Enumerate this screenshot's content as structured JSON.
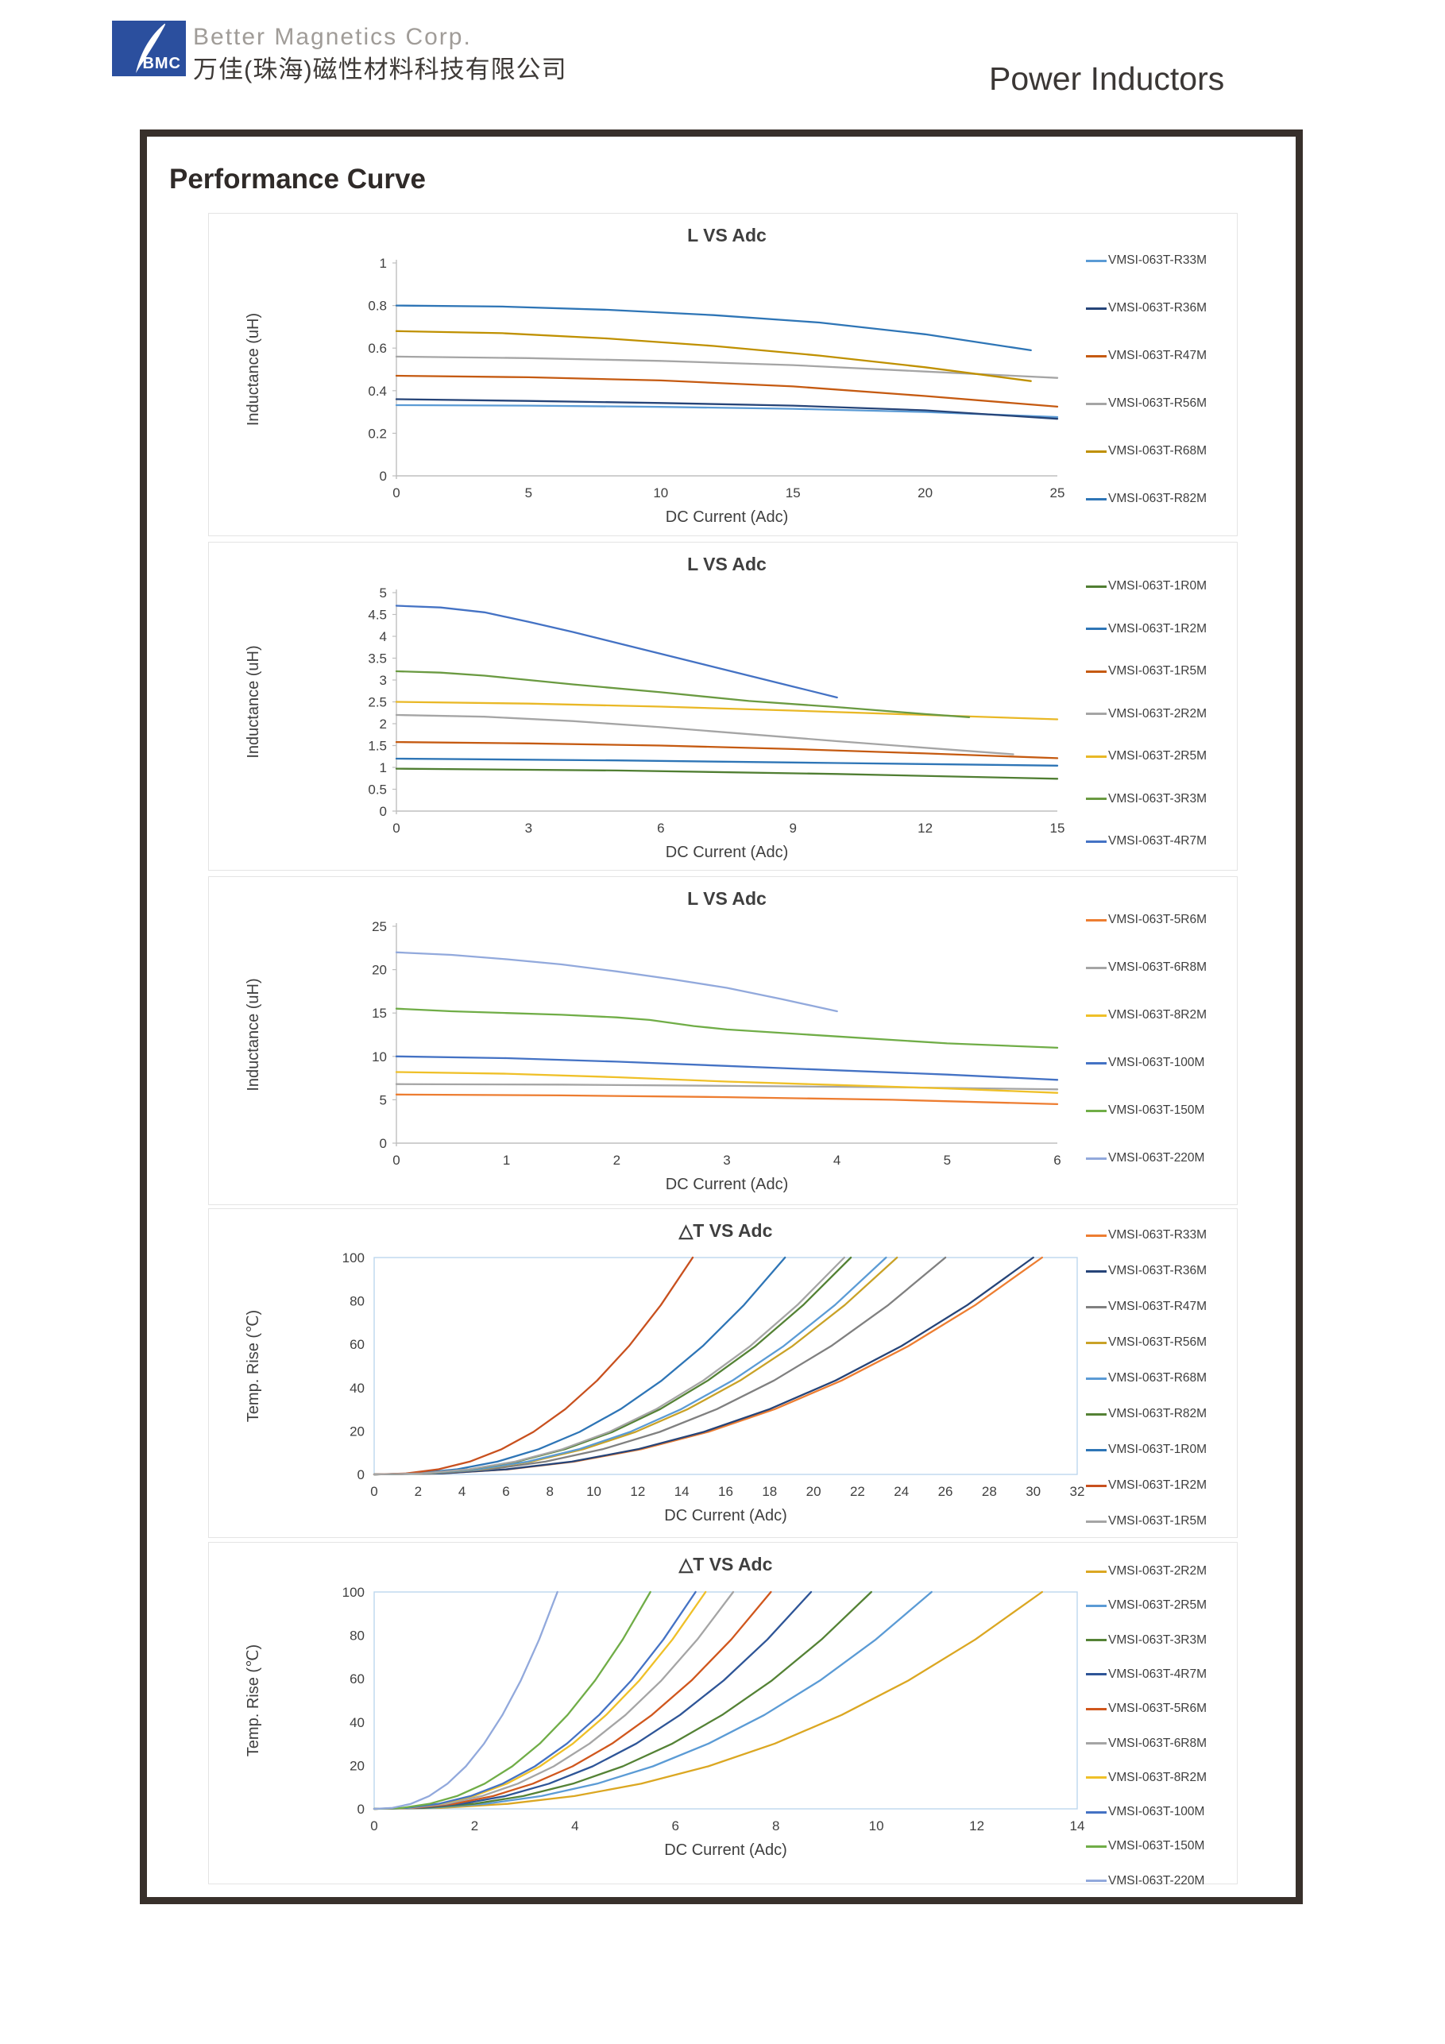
{
  "header": {
    "logo_text": "BMC",
    "company_en": "Better Magnetics Corp.",
    "company_cn": "万佳(珠海)磁性材料科技有限公司",
    "product_title": "Power Inductors",
    "brand_blue": "#2b4f9e"
  },
  "page_title": "Performance Curve",
  "chart_data": [
    {
      "type": "line",
      "title": "L VS Adc",
      "xlabel": "DC Current (Adc)",
      "ylabel": "Inductance (uH)",
      "xlim": [
        0,
        25
      ],
      "ylim": [
        0,
        1
      ],
      "xticks": [
        0,
        5,
        10,
        15,
        20,
        25
      ],
      "yticks": [
        0,
        0.2,
        0.4,
        0.6,
        0.8,
        1
      ],
      "frame": "axes",
      "grid": false,
      "legend_position": "right",
      "series": [
        {
          "name": "VMSI-063T-R33M",
          "color": "#5B9BD5",
          "points": [
            [
              0,
              0.332
            ],
            [
              5,
              0.33
            ],
            [
              10,
              0.324
            ],
            [
              15,
              0.315
            ],
            [
              20,
              0.3
            ],
            [
              25,
              0.276
            ]
          ]
        },
        {
          "name": "VMSI-063T-R36M",
          "color": "#264478",
          "points": [
            [
              0,
              0.36
            ],
            [
              5,
              0.352
            ],
            [
              10,
              0.342
            ],
            [
              15,
              0.33
            ],
            [
              20,
              0.308
            ],
            [
              25,
              0.268
            ]
          ]
        },
        {
          "name": "VMSI-063T-R47M",
          "color": "#C55A11",
          "points": [
            [
              0,
              0.47
            ],
            [
              5,
              0.463
            ],
            [
              10,
              0.448
            ],
            [
              15,
              0.42
            ],
            [
              20,
              0.375
            ],
            [
              25,
              0.325
            ]
          ]
        },
        {
          "name": "VMSI-063T-R56M",
          "color": "#A5A5A5",
          "points": [
            [
              0,
              0.56
            ],
            [
              5,
              0.553
            ],
            [
              10,
              0.54
            ],
            [
              15,
              0.52
            ],
            [
              20,
              0.49
            ],
            [
              25,
              0.46
            ]
          ]
        },
        {
          "name": "VMSI-063T-R68M",
          "color": "#BF9000",
          "points": [
            [
              0,
              0.68
            ],
            [
              4,
              0.67
            ],
            [
              8,
              0.645
            ],
            [
              12,
              0.61
            ],
            [
              16,
              0.565
            ],
            [
              20,
              0.51
            ],
            [
              24,
              0.445
            ]
          ]
        },
        {
          "name": "VMSI-063T-R82M",
          "color": "#2E75B6",
          "points": [
            [
              0,
              0.8
            ],
            [
              4,
              0.795
            ],
            [
              8,
              0.78
            ],
            [
              12,
              0.755
            ],
            [
              16,
              0.72
            ],
            [
              20,
              0.665
            ],
            [
              24,
              0.59
            ]
          ]
        }
      ]
    },
    {
      "type": "line",
      "title": "L VS Adc",
      "xlabel": "DC Current (Adc)",
      "ylabel": "Inductance (uH)",
      "xlim": [
        0,
        15
      ],
      "ylim": [
        0,
        5
      ],
      "xticks": [
        0,
        3,
        6,
        9,
        12,
        15
      ],
      "yticks": [
        0,
        0.5,
        1,
        1.5,
        2,
        2.5,
        3,
        3.5,
        4,
        4.5,
        5
      ],
      "frame": "axes",
      "grid": false,
      "legend_position": "right",
      "series": [
        {
          "name": "VMSI-063T-1R0M",
          "color": "#507E32",
          "points": [
            [
              0,
              0.97
            ],
            [
              5,
              0.93
            ],
            [
              10,
              0.85
            ],
            [
              15,
              0.74
            ]
          ]
        },
        {
          "name": "VMSI-063T-1R2M",
          "color": "#2E75B6",
          "points": [
            [
              0,
              1.2
            ],
            [
              5,
              1.16
            ],
            [
              10,
              1.1
            ],
            [
              15,
              1.04
            ]
          ]
        },
        {
          "name": "VMSI-063T-1R5M",
          "color": "#C55A11",
          "points": [
            [
              0,
              1.58
            ],
            [
              3,
              1.55
            ],
            [
              6,
              1.5
            ],
            [
              9,
              1.42
            ],
            [
              12,
              1.32
            ],
            [
              15,
              1.21
            ]
          ]
        },
        {
          "name": "VMSI-063T-2R2M",
          "color": "#A5A5A5",
          "points": [
            [
              0,
              2.2
            ],
            [
              2,
              2.16
            ],
            [
              4,
              2.06
            ],
            [
              6,
              1.92
            ],
            [
              8,
              1.76
            ],
            [
              10,
              1.6
            ],
            [
              12,
              1.45
            ],
            [
              14,
              1.3
            ]
          ]
        },
        {
          "name": "VMSI-063T-2R5M",
          "color": "#E9B826",
          "points": [
            [
              0,
              2.5
            ],
            [
              3,
              2.46
            ],
            [
              6,
              2.39
            ],
            [
              9,
              2.3
            ],
            [
              12,
              2.2
            ],
            [
              15,
              2.1
            ]
          ]
        },
        {
          "name": "VMSI-063T-3R3M",
          "color": "#6A9A41",
          "points": [
            [
              0,
              3.2
            ],
            [
              1,
              3.17
            ],
            [
              2,
              3.1
            ],
            [
              3,
              3.0
            ],
            [
              4,
              2.9
            ],
            [
              6,
              2.72
            ],
            [
              8,
              2.52
            ],
            [
              10,
              2.38
            ],
            [
              12,
              2.22
            ],
            [
              13,
              2.15
            ]
          ]
        },
        {
          "name": "VMSI-063T-4R7M",
          "color": "#4472C4",
          "points": [
            [
              0,
              4.7
            ],
            [
              1,
              4.66
            ],
            [
              2,
              4.55
            ],
            [
              3,
              4.33
            ],
            [
              4,
              4.1
            ],
            [
              5,
              3.85
            ],
            [
              6,
              3.6
            ],
            [
              7,
              3.35
            ],
            [
              8,
              3.1
            ],
            [
              9,
              2.85
            ],
            [
              10,
              2.6
            ]
          ]
        }
      ]
    },
    {
      "type": "line",
      "title": "L VS Adc",
      "xlabel": "DC Current (Adc)",
      "ylabel": "Inductance (uH)",
      "xlim": [
        0,
        6
      ],
      "ylim": [
        0,
        25
      ],
      "xticks": [
        0,
        1,
        2,
        3,
        4,
        5,
        6
      ],
      "yticks": [
        0,
        5,
        10,
        15,
        20,
        25
      ],
      "frame": "axes",
      "grid": false,
      "legend_position": "right",
      "series": [
        {
          "name": "VMSI-063T-5R6M",
          "color": "#ED7D31",
          "points": [
            [
              0,
              5.6
            ],
            [
              1.5,
              5.5
            ],
            [
              3,
              5.3
            ],
            [
              4.5,
              5.0
            ],
            [
              6,
              4.5
            ]
          ]
        },
        {
          "name": "VMSI-063T-6R8M",
          "color": "#A5A5A5",
          "points": [
            [
              0,
              6.8
            ],
            [
              1.5,
              6.75
            ],
            [
              3,
              6.6
            ],
            [
              4.5,
              6.45
            ],
            [
              6,
              6.2
            ]
          ]
        },
        {
          "name": "VMSI-063T-8R2M",
          "color": "#EFC028",
          "points": [
            [
              0,
              8.2
            ],
            [
              1,
              8.0
            ],
            [
              2,
              7.6
            ],
            [
              3,
              7.1
            ],
            [
              4,
              6.7
            ],
            [
              5,
              6.3
            ],
            [
              6,
              5.8
            ]
          ]
        },
        {
          "name": "VMSI-063T-100M",
          "color": "#4472C4",
          "points": [
            [
              0,
              10.0
            ],
            [
              1,
              9.8
            ],
            [
              2,
              9.4
            ],
            [
              3,
              8.9
            ],
            [
              4,
              8.4
            ],
            [
              5,
              7.9
            ],
            [
              6,
              7.3
            ]
          ]
        },
        {
          "name": "VMSI-063T-150M",
          "color": "#70AD47",
          "points": [
            [
              0,
              15.5
            ],
            [
              0.5,
              15.2
            ],
            [
              1,
              15.0
            ],
            [
              1.5,
              14.8
            ],
            [
              2,
              14.5
            ],
            [
              2.3,
              14.2
            ],
            [
              2.7,
              13.5
            ],
            [
              3,
              13.1
            ],
            [
              4,
              12.3
            ],
            [
              5,
              11.5
            ],
            [
              6,
              11.0
            ]
          ]
        },
        {
          "name": "VMSI-063T-220M",
          "color": "#92A9DC",
          "points": [
            [
              0,
              22.0
            ],
            [
              0.5,
              21.7
            ],
            [
              1,
              21.2
            ],
            [
              1.5,
              20.6
            ],
            [
              2,
              19.8
            ],
            [
              2.5,
              18.9
            ],
            [
              3,
              17.9
            ],
            [
              3.5,
              16.6
            ],
            [
              4,
              15.2
            ]
          ]
        }
      ]
    },
    {
      "type": "line",
      "title": "△T VS Adc",
      "xlabel": "DC Current (Adc)",
      "ylabel": "Temp. Rise (℃)",
      "xlim": [
        0,
        32
      ],
      "ylim": [
        0,
        100
      ],
      "xticks": [
        0,
        2,
        4,
        6,
        8,
        10,
        12,
        14,
        16,
        18,
        20,
        22,
        24,
        26,
        28,
        30,
        32
      ],
      "yticks": [
        0,
        20,
        40,
        60,
        80,
        100
      ],
      "frame": "box",
      "grid": false,
      "legend_position": "right",
      "rise_fractions": [
        0,
        0.1,
        0.2,
        0.3,
        0.4,
        0.5,
        0.6,
        0.7,
        0.8,
        0.9,
        1
      ],
      "rise_profile_degC": [
        0,
        0.45,
        2.3,
        5.9,
        11.6,
        19.6,
        30.1,
        43.3,
        59.2,
        78.1,
        100
      ],
      "series": [
        {
          "name": "VMSI-063T-R33M",
          "color": "#ED7D31",
          "amps_at_100C_rise": 30.4
        },
        {
          "name": "VMSI-063T-R36M",
          "color": "#264478",
          "amps_at_100C_rise": 30.0
        },
        {
          "name": "VMSI-063T-R47M",
          "color": "#808080",
          "amps_at_100C_rise": 26.0
        },
        {
          "name": "VMSI-063T-R56M",
          "color": "#C9A227",
          "amps_at_100C_rise": 23.8
        },
        {
          "name": "VMSI-063T-R68M",
          "color": "#5B9BD5",
          "amps_at_100C_rise": 23.3
        },
        {
          "name": "VMSI-063T-R82M",
          "color": "#548235",
          "amps_at_100C_rise": 21.7
        },
        {
          "name": "VMSI-063T-1R0M",
          "color": "#2E75B6",
          "amps_at_100C_rise": 18.7
        },
        {
          "name": "VMSI-063T-1R2M",
          "color": "#C8501E",
          "amps_at_100C_rise": 14.5
        },
        {
          "name": "VMSI-063T-1R5M",
          "color": "#A5A5A5",
          "amps_at_100C_rise": 21.4
        }
      ]
    },
    {
      "type": "line",
      "title": "△T VS Adc",
      "xlabel": "DC Current (Adc)",
      "ylabel": "Temp. Rise (℃)",
      "xlim": [
        0,
        14
      ],
      "ylim": [
        0,
        100
      ],
      "xticks": [
        0,
        2,
        4,
        6,
        8,
        10,
        12,
        14
      ],
      "yticks": [
        0,
        20,
        40,
        60,
        80,
        100
      ],
      "frame": "box",
      "grid": false,
      "legend_position": "right",
      "rise_fractions": [
        0,
        0.1,
        0.2,
        0.3,
        0.4,
        0.5,
        0.6,
        0.7,
        0.8,
        0.9,
        1
      ],
      "rise_profile_degC": [
        0,
        0.45,
        2.3,
        5.9,
        11.6,
        19.6,
        30.1,
        43.3,
        59.2,
        78.1,
        100
      ],
      "series": [
        {
          "name": "VMSI-063T-2R2M",
          "color": "#DBA722",
          "amps_at_100C_rise": 13.3
        },
        {
          "name": "VMSI-063T-2R5M",
          "color": "#5B9BD5",
          "amps_at_100C_rise": 11.1
        },
        {
          "name": "VMSI-063T-3R3M",
          "color": "#548235",
          "amps_at_100C_rise": 9.9
        },
        {
          "name": "VMSI-063T-4R7M",
          "color": "#2E5597",
          "amps_at_100C_rise": 8.7
        },
        {
          "name": "VMSI-063T-5R6M",
          "color": "#D0571D",
          "amps_at_100C_rise": 7.9
        },
        {
          "name": "VMSI-063T-6R8M",
          "color": "#A5A5A5",
          "amps_at_100C_rise": 7.15
        },
        {
          "name": "VMSI-063T-8R2M",
          "color": "#EFC028",
          "amps_at_100C_rise": 6.6
        },
        {
          "name": "VMSI-063T-100M",
          "color": "#4472C4",
          "amps_at_100C_rise": 6.4
        },
        {
          "name": "VMSI-063T-150M",
          "color": "#70AD47",
          "amps_at_100C_rise": 5.5
        },
        {
          "name": "VMSI-063T-220M",
          "color": "#92A9DC",
          "amps_at_100C_rise": 3.65
        }
      ]
    }
  ]
}
